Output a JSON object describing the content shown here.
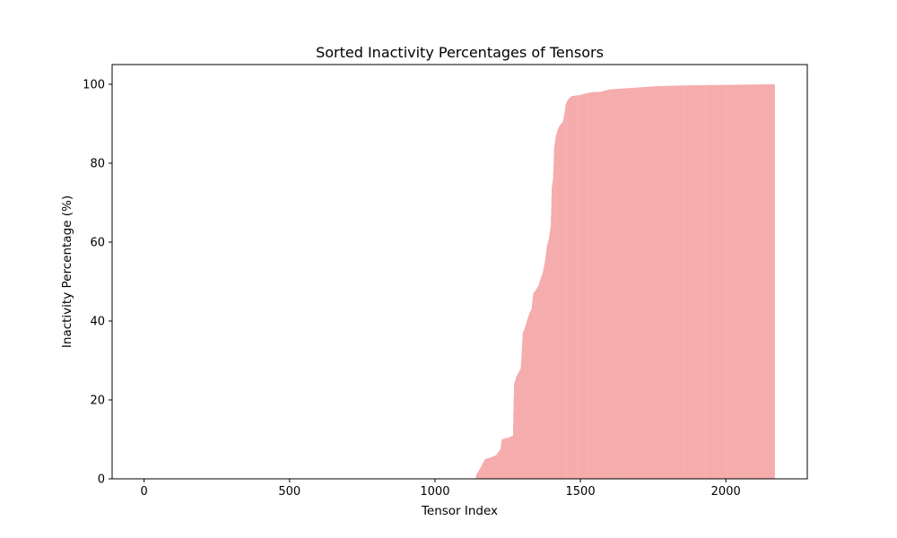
{
  "chart_data": {
    "type": "bar",
    "title": "Sorted Inactivity Percentages of Tensors",
    "xlabel": "Tensor Index",
    "ylabel": "Inactivity Percentage (%)",
    "xlim": [
      -110,
      2280
    ],
    "ylim": [
      0,
      105
    ],
    "x_ticks": [
      0,
      500,
      1000,
      1500,
      2000
    ],
    "y_ticks": [
      0,
      20,
      40,
      60,
      80,
      100
    ],
    "bar_color": "#f08080",
    "grid": false,
    "legend": "none",
    "n_points": 2169,
    "series": [
      {
        "points": [
          [
            0,
            0
          ],
          [
            1140,
            0
          ],
          [
            1142,
            1
          ],
          [
            1150,
            2
          ],
          [
            1158,
            3
          ],
          [
            1166,
            4.2
          ],
          [
            1172,
            5
          ],
          [
            1195,
            5.5
          ],
          [
            1210,
            6
          ],
          [
            1225,
            7.5
          ],
          [
            1230,
            10
          ],
          [
            1255,
            10.5
          ],
          [
            1268,
            11
          ],
          [
            1272,
            24
          ],
          [
            1280,
            26
          ],
          [
            1288,
            27
          ],
          [
            1295,
            28
          ],
          [
            1302,
            37
          ],
          [
            1308,
            38
          ],
          [
            1316,
            40
          ],
          [
            1325,
            42
          ],
          [
            1332,
            43
          ],
          [
            1338,
            47
          ],
          [
            1348,
            48
          ],
          [
            1356,
            49
          ],
          [
            1364,
            51
          ],
          [
            1370,
            52
          ],
          [
            1378,
            55
          ],
          [
            1385,
            59
          ],
          [
            1392,
            61
          ],
          [
            1398,
            64
          ],
          [
            1402,
            74
          ],
          [
            1406,
            76
          ],
          [
            1410,
            84
          ],
          [
            1416,
            87
          ],
          [
            1422,
            88.5
          ],
          [
            1428,
            89.5
          ],
          [
            1434,
            90
          ],
          [
            1440,
            90.5
          ],
          [
            1446,
            93
          ],
          [
            1450,
            95
          ],
          [
            1456,
            96
          ],
          [
            1462,
            96.5
          ],
          [
            1470,
            97
          ],
          [
            1480,
            97.1
          ],
          [
            1500,
            97.3
          ],
          [
            1520,
            97.7
          ],
          [
            1540,
            98
          ],
          [
            1570,
            98.1
          ],
          [
            1600,
            98.7
          ],
          [
            1640,
            98.9
          ],
          [
            1680,
            99.1
          ],
          [
            1720,
            99.3
          ],
          [
            1760,
            99.5
          ],
          [
            1800,
            99.6
          ],
          [
            1850,
            99.7
          ],
          [
            1900,
            99.75
          ],
          [
            1950,
            99.8
          ],
          [
            2000,
            99.85
          ],
          [
            2050,
            99.9
          ],
          [
            2100,
            99.95
          ],
          [
            2168,
            100
          ]
        ]
      }
    ]
  }
}
